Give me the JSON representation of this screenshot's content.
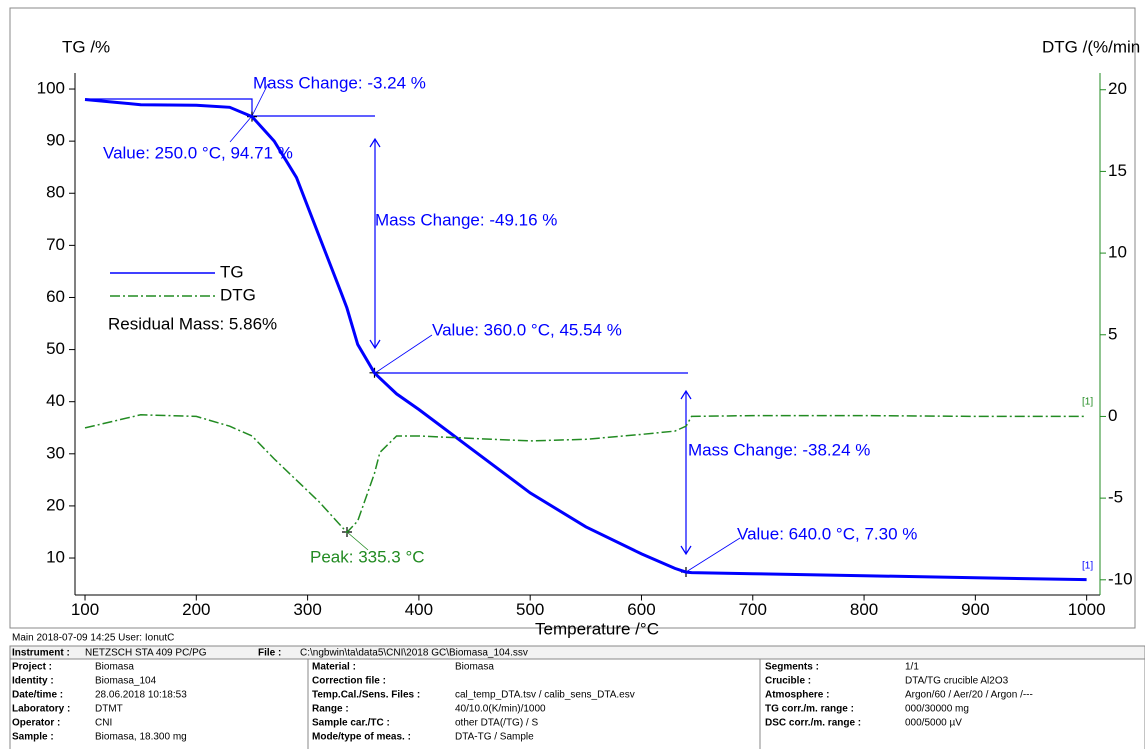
{
  "chart_data": {
    "type": "line",
    "ylabel": "TG /%",
    "y2label": "DTG /(%/min",
    "xlabel": "Temperature /°C",
    "x": [
      100,
      150,
      200,
      230,
      250,
      270,
      290,
      310,
      330,
      335.3,
      345,
      360,
      365,
      380,
      400,
      450,
      500,
      550,
      600,
      630,
      640,
      645,
      700,
      800,
      900,
      1000
    ],
    "series": [
      {
        "name": "TG",
        "color": "#0000ff",
        "axis": "y",
        "values": [
          98,
          97,
          96.9,
          96.5,
          94.71,
          90,
          83,
          72,
          61,
          58,
          51,
          45.54,
          44.5,
          41.5,
          38.5,
          30.5,
          22.5,
          16,
          10.8,
          8,
          7.3,
          7.2,
          7.0,
          6.6,
          6.2,
          5.86
        ]
      },
      {
        "name": "DTG",
        "color": "#228b22",
        "axis": "y2",
        "values": [
          -0.7,
          0.1,
          0.0,
          -0.6,
          -1.2,
          -2.6,
          -3.9,
          -5.2,
          -6.7,
          -7.1,
          -6.4,
          -3.5,
          -2.2,
          -1.2,
          -1.2,
          -1.35,
          -1.5,
          -1.4,
          -1.1,
          -0.9,
          -0.6,
          0.0,
          0.05,
          0.05,
          0.0,
          0.0
        ]
      }
    ],
    "xlim": [
      91,
      1012
    ],
    "xticks": [
      100,
      200,
      300,
      400,
      500,
      600,
      700,
      800,
      900,
      1000
    ],
    "ylim": [
      3,
      103
    ],
    "yticks": [
      10,
      20,
      30,
      40,
      50,
      60,
      70,
      80,
      90,
      100
    ],
    "y2lim": [
      -10.9,
      21
    ],
    "y2ticks": [
      -10,
      -5,
      0,
      5,
      10,
      15,
      20
    ],
    "legend": "left",
    "annotations": [
      "Mass Change: -3.24 %",
      "Value: 250.0 °C, 94.71 %",
      "Mass Change: -49.16 %",
      "Value: 360.0 °C, 45.54 %",
      "Mass Change: -38.24 %",
      "Value: 640.0 °C, 7.30 %",
      "Peak: 335.3 °C",
      "Residual Mass: 5.86%",
      "[1]",
      "[1]"
    ]
  },
  "footer": {
    "meta": "Main   2018-07-09 14:25   User: IonutC",
    "instrument_label": "Instrument :",
    "instrument": "NETZSCH STA 409 PC/PG",
    "file_label": "File :",
    "file": "C:\\ngbwin\\ta\\data5\\CNI\\2018 GC\\Biomasa_104.ssv",
    "columns": [
      [
        [
          "Project :",
          "Biomasa"
        ],
        [
          "Identity :",
          "Biomasa_104"
        ],
        [
          "Date/time :",
          "28.06.2018 10:18:53"
        ],
        [
          "Laboratory :",
          "DTMT"
        ],
        [
          "Operator :",
          "CNI"
        ],
        [
          "Sample :",
          "Biomasa, 18.300 mg"
        ]
      ],
      [
        [
          "Material :",
          "Biomasa"
        ],
        [
          "Correction file :"
        ],
        [
          "Temp.Cal./Sens. Files :",
          "cal_temp_DTA.tsv / calib_sens_DTA.esv"
        ],
        [
          "Range :",
          "40/10.0(K/min)/1000"
        ],
        [
          "Sample car./TC :",
          "other DTA(/TG) / S"
        ],
        [
          "Mode/type of meas. :",
          "DTA-TG / Sample"
        ]
      ],
      [
        [
          "Segments :",
          "1/1"
        ],
        [
          "Crucible :",
          "DTA/TG crucible Al2O3"
        ],
        [
          "Atmosphere :",
          "Argon/60 / Aer/20 / Argon /---"
        ],
        [
          "TG corr./m. range :",
          "000/30000 mg"
        ],
        [
          "DSC corr./m. range :",
          "000/5000 µV"
        ]
      ]
    ]
  }
}
